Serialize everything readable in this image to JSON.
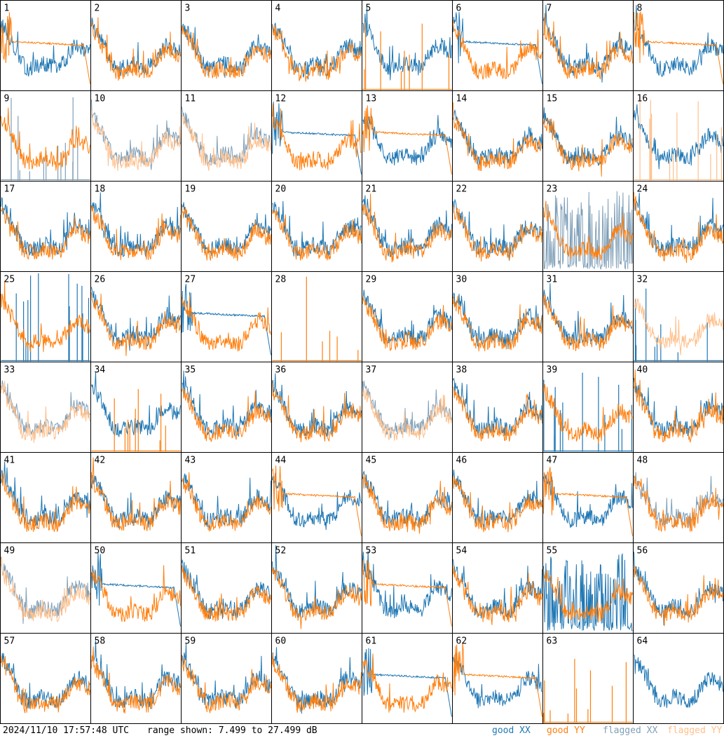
{
  "chart_data": {
    "type": "line",
    "grid": {
      "columns": 8,
      "rows": 8
    },
    "ylim": [
      7.499,
      27.499
    ],
    "legend": [
      {
        "label": "good XX",
        "color": "#1f77b4"
      },
      {
        "label": "good YY",
        "color": "#ff7f0e"
      },
      {
        "label": "flagged XX",
        "color": "#7f9fb8"
      },
      {
        "label": "flagged YY",
        "color": "#ffbf8a"
      }
    ],
    "panels": [
      {
        "label": "1",
        "xx": "good",
        "yy": "good",
        "xx_shape": "normal",
        "yy_shape": "rolloff"
      },
      {
        "label": "2",
        "xx": "good",
        "yy": "good",
        "xx_shape": "normal",
        "yy_shape": "normal"
      },
      {
        "label": "3",
        "xx": "good",
        "yy": "good",
        "xx_shape": "normal",
        "yy_shape": "normal"
      },
      {
        "label": "4",
        "xx": "good",
        "yy": "good",
        "xx_shape": "normal",
        "yy_shape": "normal"
      },
      {
        "label": "5",
        "xx": "good",
        "yy": "good",
        "xx_shape": "normal",
        "yy_shape": "spikes"
      },
      {
        "label": "6",
        "xx": "good",
        "yy": "good",
        "xx_shape": "rolloff",
        "yy_shape": "normal"
      },
      {
        "label": "7",
        "xx": "good",
        "yy": "good",
        "xx_shape": "normal",
        "yy_shape": "normal"
      },
      {
        "label": "8",
        "xx": "good",
        "yy": "good",
        "xx_shape": "normal",
        "yy_shape": "rolloff"
      },
      {
        "label": "9",
        "xx": "flagged",
        "yy": "good",
        "xx_shape": "spikes",
        "yy_shape": "normal"
      },
      {
        "label": "10",
        "xx": "flagged",
        "yy": "flagged",
        "xx_shape": "normal",
        "yy_shape": "normal"
      },
      {
        "label": "11",
        "xx": "flagged",
        "yy": "flagged",
        "xx_shape": "normal",
        "yy_shape": "normal"
      },
      {
        "label": "12",
        "xx": "good",
        "yy": "good",
        "xx_shape": "rolloff",
        "yy_shape": "normal"
      },
      {
        "label": "13",
        "xx": "good",
        "yy": "good",
        "xx_shape": "normal",
        "yy_shape": "rolloff"
      },
      {
        "label": "14",
        "xx": "good",
        "yy": "good",
        "xx_shape": "normal",
        "yy_shape": "normal"
      },
      {
        "label": "15",
        "xx": "good",
        "yy": "good",
        "xx_shape": "normal",
        "yy_shape": "normal"
      },
      {
        "label": "16",
        "xx": "good",
        "yy": "flagged",
        "xx_shape": "normal",
        "yy_shape": "spikes"
      },
      {
        "label": "17",
        "xx": "good",
        "yy": "good",
        "xx_shape": "normal",
        "yy_shape": "normal"
      },
      {
        "label": "18",
        "xx": "good",
        "yy": "good",
        "xx_shape": "normal",
        "yy_shape": "normal"
      },
      {
        "label": "19",
        "xx": "good",
        "yy": "good",
        "xx_shape": "normal",
        "yy_shape": "normal"
      },
      {
        "label": "20",
        "xx": "good",
        "yy": "good",
        "xx_shape": "normal",
        "yy_shape": "normal"
      },
      {
        "label": "21",
        "xx": "good",
        "yy": "good",
        "xx_shape": "normal",
        "yy_shape": "normal"
      },
      {
        "label": "22",
        "xx": "good",
        "yy": "good",
        "xx_shape": "normal",
        "yy_shape": "normal"
      },
      {
        "label": "23",
        "xx": "flagged",
        "yy": "good",
        "xx_shape": "noise",
        "yy_shape": "normal"
      },
      {
        "label": "24",
        "xx": "good",
        "yy": "good",
        "xx_shape": "normal",
        "yy_shape": "normal"
      },
      {
        "label": "25",
        "xx": "good",
        "yy": "good",
        "xx_shape": "spikes",
        "yy_shape": "normal"
      },
      {
        "label": "26",
        "xx": "good",
        "yy": "good",
        "xx_shape": "normal",
        "yy_shape": "normal"
      },
      {
        "label": "27",
        "xx": "good",
        "yy": "good",
        "xx_shape": "rolloff",
        "yy_shape": "normal"
      },
      {
        "label": "28",
        "xx": "good",
        "yy": "good",
        "xx_shape": "none",
        "yy_shape": "spikes"
      },
      {
        "label": "29",
        "xx": "good",
        "yy": "good",
        "xx_shape": "normal",
        "yy_shape": "normal"
      },
      {
        "label": "30",
        "xx": "good",
        "yy": "good",
        "xx_shape": "normal",
        "yy_shape": "normal"
      },
      {
        "label": "31",
        "xx": "good",
        "yy": "good",
        "xx_shape": "normal",
        "yy_shape": "normal"
      },
      {
        "label": "32",
        "xx": "good",
        "yy": "flagged",
        "xx_shape": "spikes",
        "yy_shape": "normal"
      },
      {
        "label": "33",
        "xx": "flagged",
        "yy": "flagged",
        "xx_shape": "normal",
        "yy_shape": "normal"
      },
      {
        "label": "34",
        "xx": "good",
        "yy": "good",
        "xx_shape": "normal",
        "yy_shape": "spikes"
      },
      {
        "label": "35",
        "xx": "good",
        "yy": "good",
        "xx_shape": "normal",
        "yy_shape": "normal"
      },
      {
        "label": "36",
        "xx": "good",
        "yy": "good",
        "xx_shape": "normal",
        "yy_shape": "normal"
      },
      {
        "label": "37",
        "xx": "flagged",
        "yy": "flagged",
        "xx_shape": "normal",
        "yy_shape": "normal"
      },
      {
        "label": "38",
        "xx": "good",
        "yy": "good",
        "xx_shape": "normal",
        "yy_shape": "normal"
      },
      {
        "label": "39",
        "xx": "good",
        "yy": "good",
        "xx_shape": "spikes",
        "yy_shape": "normal"
      },
      {
        "label": "40",
        "xx": "good",
        "yy": "good",
        "xx_shape": "normal",
        "yy_shape": "normal"
      },
      {
        "label": "41",
        "xx": "good",
        "yy": "good",
        "xx_shape": "normal",
        "yy_shape": "normal"
      },
      {
        "label": "42",
        "xx": "good",
        "yy": "good",
        "xx_shape": "normal",
        "yy_shape": "normal"
      },
      {
        "label": "43",
        "xx": "good",
        "yy": "good",
        "xx_shape": "normal",
        "yy_shape": "normal"
      },
      {
        "label": "44",
        "xx": "good",
        "yy": "good",
        "xx_shape": "normal",
        "yy_shape": "rolloff"
      },
      {
        "label": "45",
        "xx": "good",
        "yy": "good",
        "xx_shape": "normal",
        "yy_shape": "normal"
      },
      {
        "label": "46",
        "xx": "good",
        "yy": "good",
        "xx_shape": "normal",
        "yy_shape": "normal"
      },
      {
        "label": "47",
        "xx": "good",
        "yy": "good",
        "xx_shape": "normal",
        "yy_shape": "rolloff"
      },
      {
        "label": "48",
        "xx": "flagged",
        "yy": "good",
        "xx_shape": "normal",
        "yy_shape": "normal"
      },
      {
        "label": "49",
        "xx": "flagged",
        "yy": "flagged",
        "xx_shape": "normal",
        "yy_shape": "normal"
      },
      {
        "label": "50",
        "xx": "good",
        "yy": "good",
        "xx_shape": "rolloff",
        "yy_shape": "normal"
      },
      {
        "label": "51",
        "xx": "good",
        "yy": "good",
        "xx_shape": "normal",
        "yy_shape": "normal"
      },
      {
        "label": "52",
        "xx": "good",
        "yy": "good",
        "xx_shape": "normal",
        "yy_shape": "normal"
      },
      {
        "label": "53",
        "xx": "good",
        "yy": "good",
        "xx_shape": "normal",
        "yy_shape": "rolloff"
      },
      {
        "label": "54",
        "xx": "good",
        "yy": "good",
        "xx_shape": "normal",
        "yy_shape": "normal"
      },
      {
        "label": "55",
        "xx": "good",
        "yy": "good",
        "xx_shape": "noise",
        "yy_shape": "normal"
      },
      {
        "label": "56",
        "xx": "good",
        "yy": "good",
        "xx_shape": "normal",
        "yy_shape": "normal"
      },
      {
        "label": "57",
        "xx": "good",
        "yy": "good",
        "xx_shape": "normal",
        "yy_shape": "normal"
      },
      {
        "label": "58",
        "xx": "good",
        "yy": "good",
        "xx_shape": "normal",
        "yy_shape": "normal"
      },
      {
        "label": "59",
        "xx": "good",
        "yy": "good",
        "xx_shape": "normal",
        "yy_shape": "normal"
      },
      {
        "label": "60",
        "xx": "good",
        "yy": "good",
        "xx_shape": "normal",
        "yy_shape": "normal"
      },
      {
        "label": "61",
        "xx": "good",
        "yy": "good",
        "xx_shape": "rolloff",
        "yy_shape": "normal"
      },
      {
        "label": "62",
        "xx": "good",
        "yy": "good",
        "xx_shape": "normal",
        "yy_shape": "rolloff"
      },
      {
        "label": "63",
        "xx": "good",
        "yy": "good",
        "xx_shape": "none",
        "yy_shape": "spikes"
      },
      {
        "label": "64",
        "xx": "good",
        "yy": "good",
        "xx_shape": "normal",
        "yy_shape": "none"
      }
    ]
  },
  "footer": {
    "timestamp": "2024/11/10 17:57:48 UTC",
    "range_text": "range shown: 7.499 to 27.499 dB",
    "legend_good_xx": "good XX",
    "legend_good_yy": "good YY",
    "legend_flagged_xx": "flagged XX",
    "legend_flagged_yy": "flagged YY"
  }
}
